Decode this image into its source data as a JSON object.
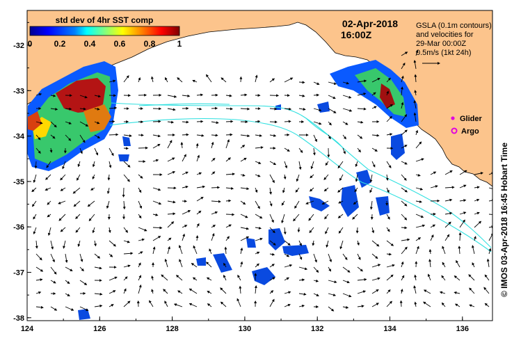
{
  "header": {
    "date": "02-Apr-2018",
    "time": "16:00Z"
  },
  "colorbar": {
    "title": "std dev of 4hr SST comp",
    "ticks": [
      "0",
      "0.2",
      "0.4",
      "0.6",
      "0.8",
      "1"
    ],
    "colors": [
      "#00008f",
      "#0000ff",
      "#0080ff",
      "#00ffff",
      "#80ff80",
      "#ffff00",
      "#ff8000",
      "#ff0000",
      "#800000"
    ]
  },
  "annotation": {
    "lines": [
      "GSLA (0.1m contours)",
      "and velocities for",
      "29-Mar 00:00Z",
      "0.5m/s (1kt 24h)"
    ]
  },
  "legend": {
    "glider_label": "Glider",
    "argo_label": "Argo",
    "glider_color": "#e000e0",
    "argo_color": "#e000e0"
  },
  "credit": {
    "symbol": "©",
    "text": "IMOS 03-Apr-2018 16:45 Hobart Time"
  },
  "axes": {
    "x_ticks": [
      "124",
      "126",
      "128",
      "130",
      "132",
      "134",
      "136"
    ],
    "y_ticks": [
      "-32",
      "-33",
      "-34",
      "-35",
      "-36",
      "-37",
      "-38"
    ]
  },
  "colors": {
    "land": "#fcc48c",
    "ocean": "#ffffff",
    "contour": "#30e0e0"
  }
}
